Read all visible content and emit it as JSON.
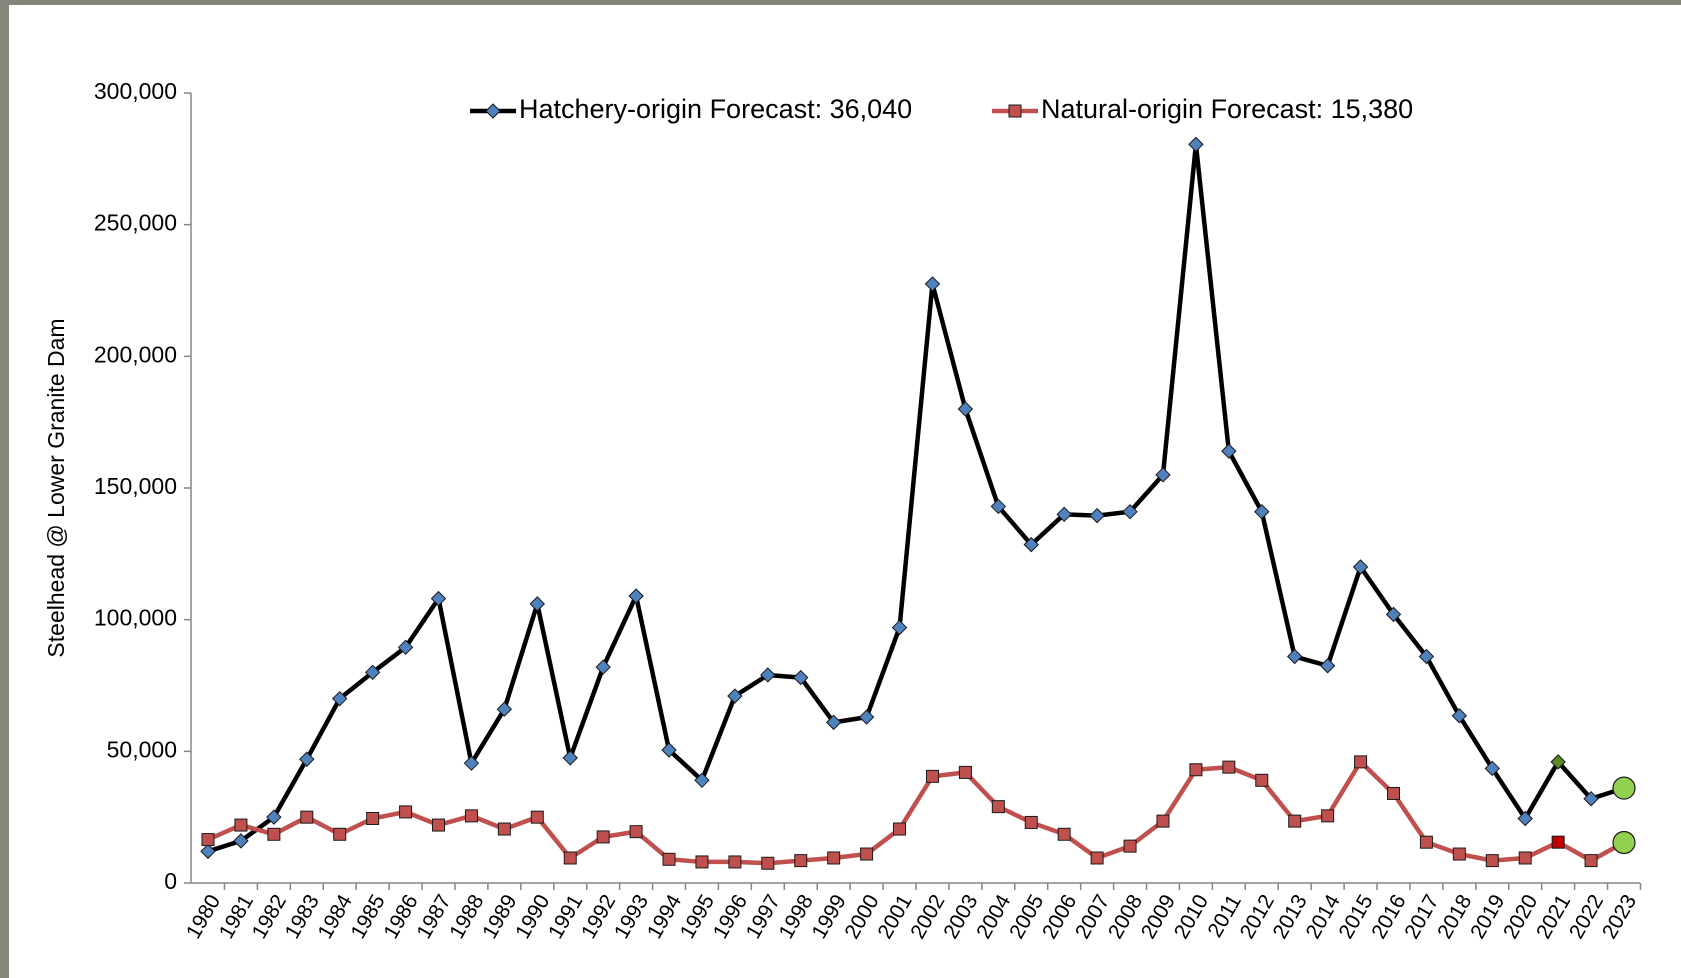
{
  "chart_data": {
    "type": "line",
    "y_label": "Steelhead @ Lower Granite Dam",
    "categories": [
      "1980",
      "1981",
      "1982",
      "1983",
      "1984",
      "1985",
      "1986",
      "1987",
      "1988",
      "1989",
      "1990",
      "1991",
      "1992",
      "1993",
      "1994",
      "1995",
      "1996",
      "1997",
      "1998",
      "1999",
      "2000",
      "2001",
      "2002",
      "2003",
      "2004",
      "2005",
      "2006",
      "2007",
      "2008",
      "2009",
      "2010",
      "2011",
      "2012",
      "2013",
      "2014",
      "2015",
      "2016",
      "2017",
      "2018",
      "2019",
      "2020",
      "2021",
      "2022",
      "2023"
    ],
    "series": [
      {
        "name": "Hatchery-origin Forecast: 36,040",
        "color": "#000000",
        "marker": "diamond",
        "marker_color": "#4f81bd",
        "highlight_index": 41,
        "highlight_color": "#5a8a28",
        "forecast_color": "#92d050",
        "values": [
          12000,
          16000,
          25000,
          47000,
          70000,
          80000,
          89500,
          108000,
          45500,
          66000,
          106000,
          47500,
          82000,
          109000,
          50500,
          39000,
          71000,
          79000,
          78000,
          61000,
          63000,
          97000,
          227500,
          180000,
          143000,
          128500,
          140000,
          139500,
          141000,
          155000,
          280500,
          164000,
          141000,
          86000,
          82500,
          120000,
          102000,
          86000,
          63500,
          43500,
          24500,
          46000,
          32000,
          36040
        ]
      },
      {
        "name": "Natural-origin Forecast: 15,380",
        "color": "#c0504d",
        "marker": "square",
        "marker_color": "#c0504d",
        "highlight_index": 41,
        "highlight_color": "#c00000",
        "forecast_color": "#92d050",
        "values": [
          16500,
          22000,
          18500,
          25000,
          18500,
          24500,
          27000,
          22000,
          25500,
          20500,
          25000,
          9500,
          17500,
          19500,
          9000,
          8000,
          8000,
          7500,
          8500,
          9500,
          11000,
          20500,
          40500,
          42000,
          29000,
          23000,
          18500,
          9500,
          14000,
          23500,
          43000,
          44000,
          39000,
          23500,
          25500,
          46000,
          34000,
          15500,
          11000,
          8500,
          9500,
          15500,
          8500,
          15380
        ]
      }
    ],
    "ylim": [
      0,
      300000
    ],
    "yticks": [
      0,
      {
        "value": 50000,
        "label": "50,000"
      },
      {
        "value": 100000,
        "label": "100,000"
      },
      {
        "value": 150000,
        "label": "150,000"
      },
      {
        "value": 200000,
        "label": "200,000"
      },
      {
        "value": 250000,
        "label": "250,000"
      },
      {
        "value": 300000,
        "label": "300,000"
      }
    ],
    "grid": false
  }
}
